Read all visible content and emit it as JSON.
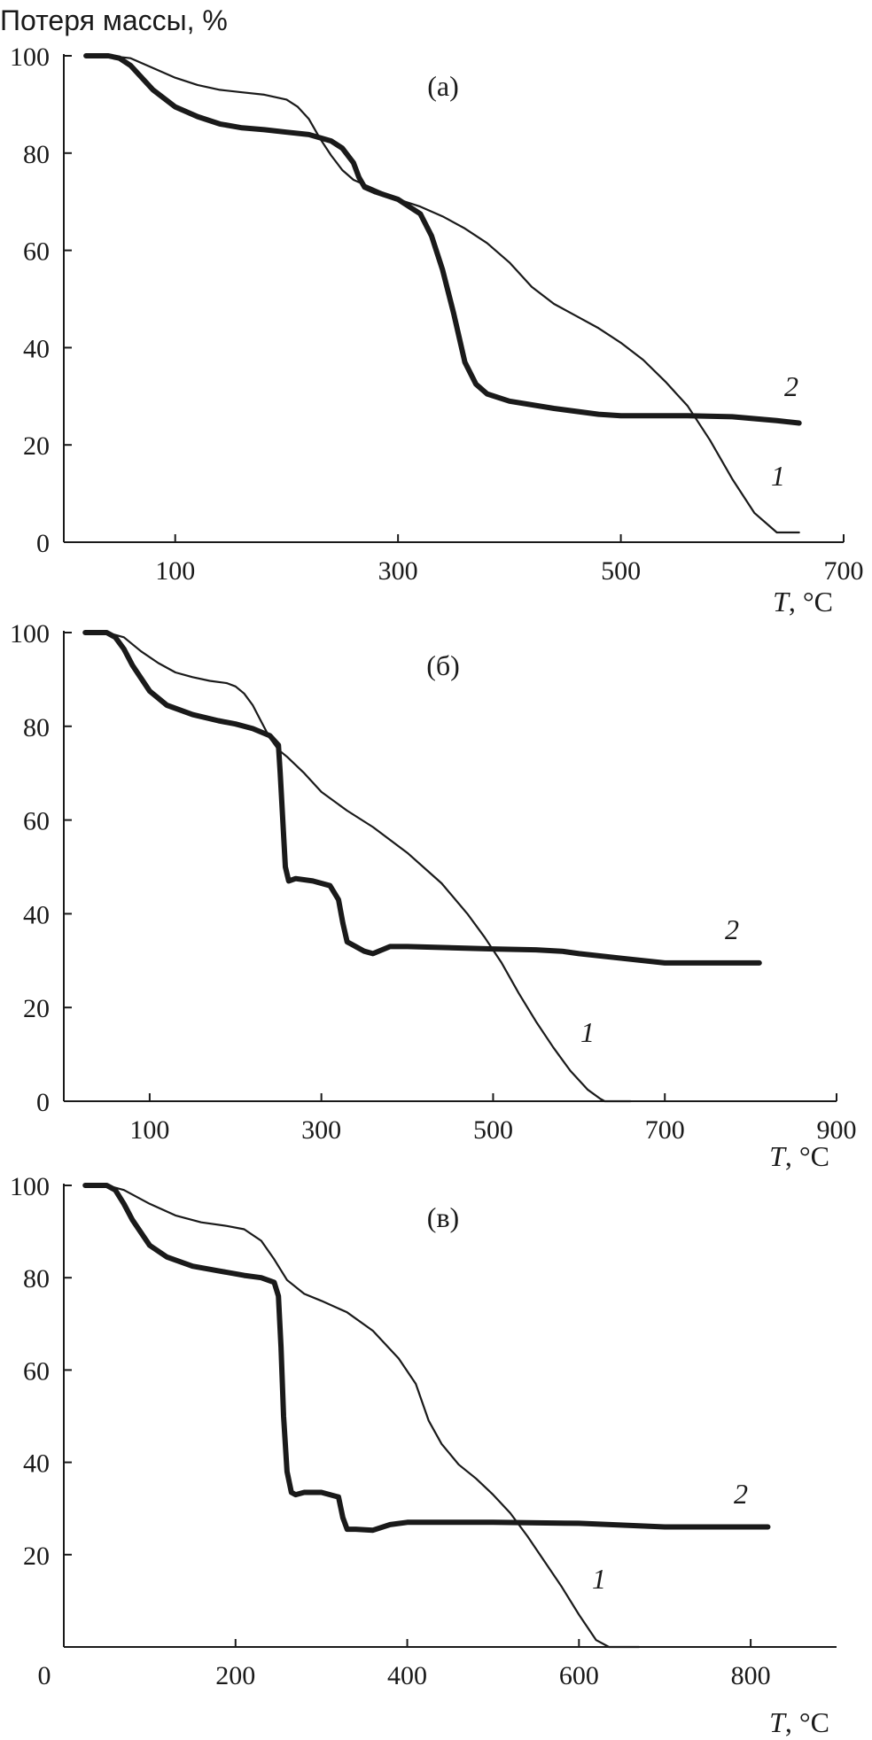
{
  "y_axis_title": "Потеря массы, %",
  "chart_data": [
    {
      "type": "line",
      "panel_label": "(а)",
      "xlabel_italic": "T",
      "xlabel_unit": ", °C",
      "xlim": [
        0,
        700
      ],
      "ylim": [
        0,
        100
      ],
      "xticks": [
        100,
        300,
        500,
        700
      ],
      "yticks": [
        0,
        20,
        40,
        60,
        80,
        100
      ],
      "series": [
        {
          "name": "1",
          "x": [
            20,
            40,
            60,
            80,
            100,
            120,
            140,
            160,
            180,
            200,
            210,
            220,
            230,
            240,
            250,
            260,
            270,
            280,
            300,
            320,
            340,
            360,
            380,
            400,
            420,
            440,
            460,
            480,
            500,
            520,
            540,
            560,
            580,
            600,
            620,
            640,
            660
          ],
          "y": [
            100,
            100,
            99.5,
            97.5,
            95.5,
            94,
            93,
            92.5,
            92,
            91,
            89.5,
            87,
            83,
            79.5,
            76.5,
            74.5,
            73.5,
            72.5,
            70.5,
            69,
            67,
            64.5,
            61.5,
            57.5,
            52.5,
            49,
            46.5,
            44,
            41,
            37.5,
            33,
            28,
            21,
            13,
            6,
            2,
            2
          ]
        },
        {
          "name": "2",
          "x": [
            20,
            40,
            50,
            60,
            80,
            100,
            120,
            140,
            160,
            180,
            200,
            220,
            240,
            250,
            260,
            265,
            270,
            280,
            300,
            320,
            330,
            340,
            350,
            360,
            370,
            380,
            400,
            440,
            480,
            500,
            560,
            600,
            640,
            660
          ],
          "y": [
            100,
            100,
            99.5,
            98,
            93,
            89.5,
            87.5,
            86,
            85.2,
            84.8,
            84.3,
            83.8,
            82.5,
            81,
            78,
            75,
            73,
            72,
            70.5,
            67.5,
            63,
            56,
            47,
            37,
            32.5,
            30.5,
            29,
            27.5,
            26.3,
            26,
            26,
            25.8,
            25,
            24.5
          ]
        }
      ],
      "series_labels": [
        "1",
        "2"
      ]
    },
    {
      "type": "line",
      "panel_label": "(б)",
      "xlabel_italic": "T",
      "xlabel_unit": ", °C",
      "xlim": [
        0,
        900
      ],
      "ylim": [
        0,
        100
      ],
      "xticks": [
        100,
        300,
        500,
        700,
        900
      ],
      "yticks": [
        0,
        20,
        40,
        60,
        80,
        100
      ],
      "series": [
        {
          "name": "1",
          "x": [
            25,
            50,
            70,
            90,
            110,
            130,
            150,
            170,
            190,
            200,
            210,
            220,
            230,
            240,
            250,
            260,
            280,
            300,
            330,
            360,
            400,
            440,
            470,
            490,
            510,
            530,
            550,
            570,
            590,
            610,
            625,
            630,
            660
          ],
          "y": [
            100,
            100,
            99,
            96,
            93.5,
            91.5,
            90.5,
            89.7,
            89.2,
            88.5,
            87,
            84.5,
            81,
            77.5,
            75,
            73.5,
            70,
            66,
            62,
            58.5,
            53,
            46.5,
            40,
            35,
            29.5,
            23,
            17,
            11.5,
            6.5,
            2.5,
            0.5,
            0,
            0
          ]
        },
        {
          "name": "2",
          "x": [
            25,
            50,
            60,
            70,
            80,
            100,
            120,
            150,
            180,
            200,
            220,
            240,
            250,
            252,
            255,
            258,
            262,
            270,
            290,
            310,
            320,
            325,
            330,
            335,
            350,
            360,
            380,
            400,
            500,
            550,
            580,
            600,
            650,
            700,
            750,
            810
          ],
          "y": [
            100,
            100,
            99,
            96.5,
            93,
            87.5,
            84.5,
            82.5,
            81.2,
            80.5,
            79.5,
            78,
            76,
            70,
            60,
            50,
            47,
            47.5,
            47,
            46,
            43,
            38,
            34,
            33.5,
            32,
            31.5,
            33,
            33,
            32.5,
            32.3,
            32,
            31.5,
            30.5,
            29.5,
            29.5,
            29.5
          ]
        }
      ],
      "series_labels": [
        "1",
        "2"
      ]
    },
    {
      "type": "line",
      "panel_label": "(в)",
      "xlabel_italic": "T",
      "xlabel_unit": ", °C",
      "xlim": [
        0,
        900
      ],
      "ylim": [
        0,
        100
      ],
      "xticks": [
        0,
        200,
        400,
        600,
        800
      ],
      "yticks": [
        20,
        40,
        60,
        80,
        100
      ],
      "series": [
        {
          "name": "1",
          "x": [
            25,
            50,
            70,
            100,
            130,
            160,
            190,
            210,
            230,
            245,
            260,
            280,
            300,
            330,
            360,
            390,
            410,
            425,
            440,
            460,
            480,
            500,
            520,
            540,
            560,
            580,
            600,
            620,
            635,
            640,
            670
          ],
          "y": [
            100,
            100,
            99,
            96,
            93.5,
            92,
            91.2,
            90.5,
            88,
            84,
            79.5,
            76.5,
            75,
            72.5,
            68.5,
            62.5,
            57,
            49,
            44,
            39.5,
            36.5,
            33,
            29,
            24,
            18.5,
            13,
            7,
            1.5,
            0,
            0,
            0
          ]
        },
        {
          "name": "2",
          "x": [
            25,
            50,
            60,
            70,
            80,
            100,
            120,
            150,
            180,
            210,
            230,
            245,
            250,
            253,
            256,
            260,
            265,
            270,
            280,
            300,
            320,
            325,
            330,
            340,
            360,
            380,
            400,
            500,
            600,
            700,
            760,
            820
          ],
          "y": [
            100,
            100,
            99,
            96,
            92.5,
            87,
            84.5,
            82.5,
            81.5,
            80.5,
            80,
            79,
            76,
            65,
            50,
            38,
            33.5,
            33,
            33.5,
            33.5,
            32.5,
            28,
            25.5,
            25.5,
            25.3,
            26.5,
            27,
            27,
            26.8,
            26,
            26,
            26
          ]
        }
      ],
      "series_labels": [
        "1",
        "2"
      ]
    }
  ]
}
